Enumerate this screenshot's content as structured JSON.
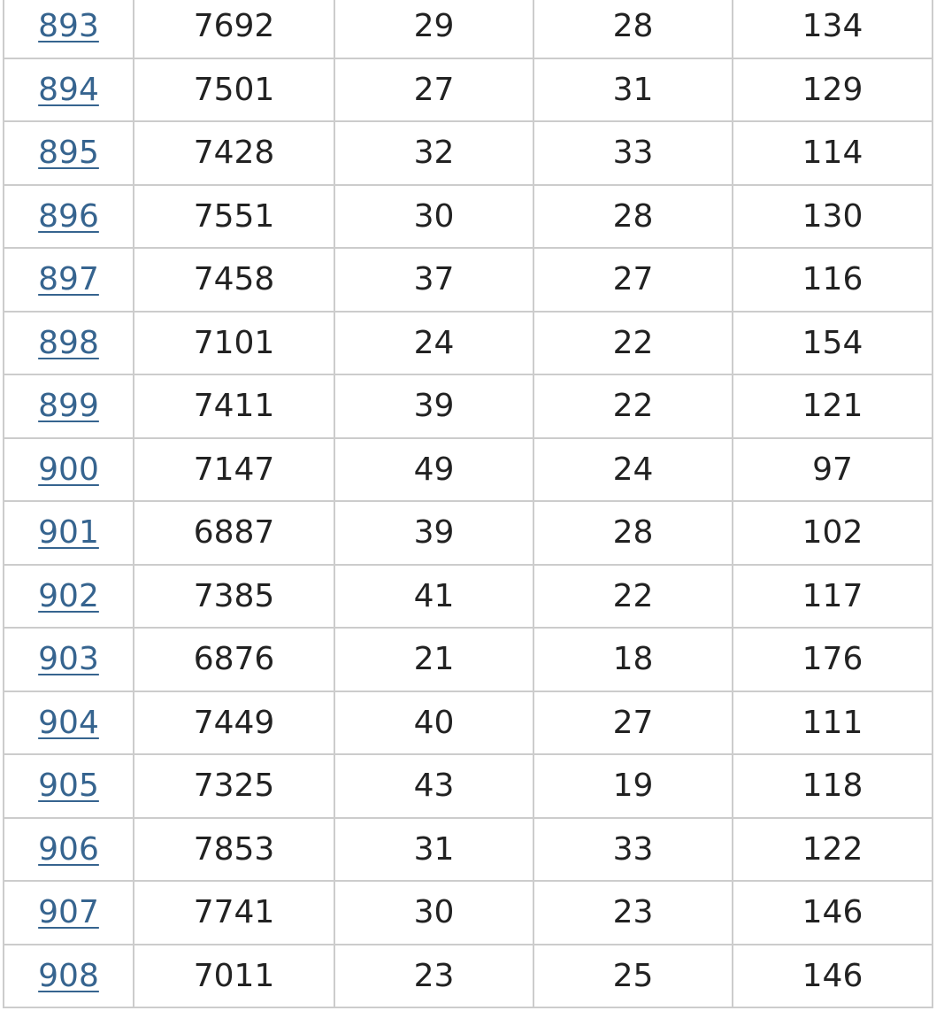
{
  "colors": {
    "link": "#36648f",
    "text": "#222222",
    "border": "#cccccc"
  },
  "table": {
    "rows": [
      [
        "893",
        "7692",
        "29",
        "28",
        "134"
      ],
      [
        "894",
        "7501",
        "27",
        "31",
        "129"
      ],
      [
        "895",
        "7428",
        "32",
        "33",
        "114"
      ],
      [
        "896",
        "7551",
        "30",
        "28",
        "130"
      ],
      [
        "897",
        "7458",
        "37",
        "27",
        "116"
      ],
      [
        "898",
        "7101",
        "24",
        "22",
        "154"
      ],
      [
        "899",
        "7411",
        "39",
        "22",
        "121"
      ],
      [
        "900",
        "7147",
        "49",
        "24",
        "97"
      ],
      [
        "901",
        "6887",
        "39",
        "28",
        "102"
      ],
      [
        "902",
        "7385",
        "41",
        "22",
        "117"
      ],
      [
        "903",
        "6876",
        "21",
        "18",
        "176"
      ],
      [
        "904",
        "7449",
        "40",
        "27",
        "111"
      ],
      [
        "905",
        "7325",
        "43",
        "19",
        "118"
      ],
      [
        "906",
        "7853",
        "31",
        "33",
        "122"
      ],
      [
        "907",
        "7741",
        "30",
        "23",
        "146"
      ],
      [
        "908",
        "7011",
        "23",
        "25",
        "146"
      ]
    ]
  }
}
